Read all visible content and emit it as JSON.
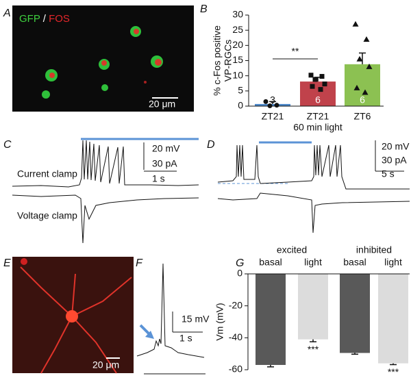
{
  "panels": {
    "A": {
      "label": "A",
      "legend": [
        "GFP",
        "/",
        "FOS"
      ],
      "scale": "20 μm"
    },
    "B": {
      "label": "B"
    },
    "C": {
      "label": "C",
      "scales": [
        "20 mV",
        "30 pA",
        "1 s"
      ],
      "traces": [
        "Current clamp",
        "Voltage clamp"
      ]
    },
    "D": {
      "label": "D",
      "scales": [
        "20 mV",
        "30 pA",
        "5 s"
      ]
    },
    "E": {
      "label": "E",
      "scale": "20 μm"
    },
    "F": {
      "label": "F",
      "scales": [
        "15 mV",
        "1 s"
      ]
    },
    "G": {
      "label": "G"
    }
  },
  "chart_data": [
    {
      "type": "bar",
      "ylabel": [
        "% c-Fos positive",
        "VP-RGCs"
      ],
      "categories": [
        "ZT21",
        "ZT21",
        "ZT6"
      ],
      "category_sublabels": [
        null,
        "60 min light",
        null
      ],
      "values": [
        0.7,
        8.1,
        13.8
      ],
      "errors": [
        0.8,
        1.4,
        3.7
      ],
      "colors": [
        "#4a86c8",
        "#c0424b",
        "#8cc152"
      ],
      "n": [
        3,
        6,
        6
      ],
      "points": [
        [
          1.5,
          0.3,
          0.1
        ],
        [
          10.2,
          9.8,
          8.8,
          7.3,
          6.5,
          5.5
        ],
        [
          27,
          22,
          15.5,
          13,
          6,
          4.5
        ]
      ],
      "significance": "**",
      "ylim": [
        0,
        30
      ],
      "yticks": [
        0,
        5,
        10,
        15,
        20,
        25,
        30
      ]
    },
    {
      "type": "bar",
      "ylabel": "Vm (mV)",
      "groups": [
        "excited",
        "inhibited"
      ],
      "categories": [
        "basal",
        "light",
        "basal",
        "light"
      ],
      "values": [
        -57,
        -41,
        -49.5,
        -56
      ],
      "errors": [
        1.2,
        1.5,
        0.8,
        0.8
      ],
      "colors": [
        "#595959",
        "#dcdcdc",
        "#595959",
        "#dcdcdc"
      ],
      "significance": [
        null,
        "***",
        null,
        "***"
      ],
      "ylim": [
        -60,
        0
      ],
      "yticks": [
        0,
        -20,
        -40,
        -60
      ]
    }
  ]
}
